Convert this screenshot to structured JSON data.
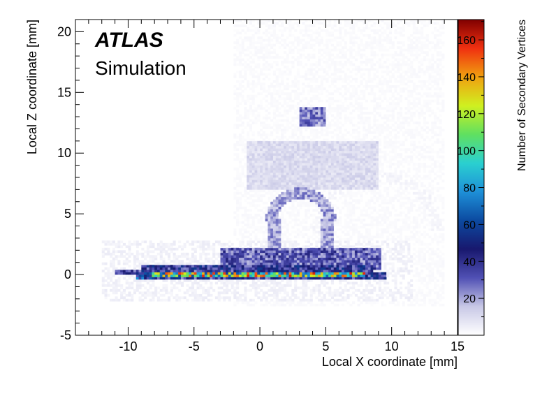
{
  "chart_data": {
    "type": "heatmap",
    "title": "",
    "xlabel": "Local X coordinate [mm]",
    "ylabel": "Local Z coordinate [mm]",
    "zlabel": "Number of Secondary Vertices",
    "xlim": [
      -14,
      15
    ],
    "ylim": [
      -5,
      21
    ],
    "zlim": [
      0,
      171
    ],
    "x_ticks": [
      "-10",
      "-5",
      "0",
      "5",
      "10",
      "15"
    ],
    "x_tick_values": [
      -10,
      -5,
      0,
      5,
      10,
      15
    ],
    "y_ticks": [
      "-5",
      "0",
      "5",
      "10",
      "15",
      "20"
    ],
    "y_tick_values": [
      -5,
      0,
      5,
      10,
      15,
      20
    ],
    "z_ticks": [
      "20",
      "40",
      "60",
      "80",
      "100",
      "120",
      "140",
      "160"
    ],
    "z_tick_values": [
      20,
      40,
      60,
      80,
      100,
      120,
      140,
      160
    ],
    "grid": false,
    "legend": "colorbar-right",
    "annotations": {
      "experiment": "ATLAS",
      "label": "Simulation"
    },
    "palette": [
      "#ffffff",
      "#c8c8e6",
      "#5050b4",
      "#18186e",
      "#0c4aa0",
      "#1e90d8",
      "#2ad0d0",
      "#60e060",
      "#d0f020",
      "#f0a010",
      "#f03010",
      "#800000"
    ],
    "regions": [
      {
        "name": "beam-pipe-stub",
        "x": [
          -11.0,
          -7.8
        ],
        "z": [
          0.0,
          0.35
        ],
        "intensity": 35
      },
      {
        "name": "sensor-backing-left",
        "x": [
          -9.0,
          8.5
        ],
        "z": [
          -0.3,
          0.9
        ],
        "intensity": 40
      },
      {
        "name": "sensor-layer",
        "x": [
          -8.2,
          8.0
        ],
        "z": [
          -0.15,
          0.15
        ],
        "intensity": 110
      },
      {
        "name": "chip-edge-left",
        "x": [
          -9.3,
          -7.8
        ],
        "z": [
          -0.4,
          0.3
        ],
        "intensity": 55
      },
      {
        "name": "chip-edge-right",
        "x": [
          8.0,
          9.5
        ],
        "z": [
          -0.3,
          0.3
        ],
        "intensity": 40
      },
      {
        "name": "service-block",
        "x": [
          -3.0,
          9.2
        ],
        "z": [
          0.5,
          2.2
        ],
        "intensity": 30
      },
      {
        "name": "halo-low",
        "x": [
          -12.0,
          11.5
        ],
        "z": [
          -2.2,
          2.9
        ],
        "intensity": 4
      },
      {
        "name": "arch-left-leg",
        "x": [
          0.7,
          1.6
        ],
        "z": [
          2.0,
          4.5
        ],
        "intensity": 20
      },
      {
        "name": "arch-right-leg",
        "x": [
          4.6,
          5.5
        ],
        "z": [
          2.0,
          4.5
        ],
        "intensity": 20
      },
      {
        "name": "upper-box",
        "x": [
          -1.0,
          9.0
        ],
        "z": [
          7.0,
          11.0
        ],
        "intensity": 10
      },
      {
        "name": "hot-block",
        "x": [
          3.0,
          5.0
        ],
        "z": [
          12.3,
          13.8
        ],
        "intensity": 25
      },
      {
        "name": "outer-halo",
        "x": [
          -2.0,
          14.0
        ],
        "z": [
          -2.5,
          21.0
        ],
        "intensity": 1.5
      }
    ],
    "arcs": [
      {
        "name": "arch-dome",
        "cx": 3.1,
        "cz": 4.5,
        "r": 2.2,
        "intensity": 20
      },
      {
        "name": "right-swoop",
        "cx": 9.0,
        "cz": 3.5,
        "r": 4.5,
        "intensity": 3
      }
    ]
  }
}
